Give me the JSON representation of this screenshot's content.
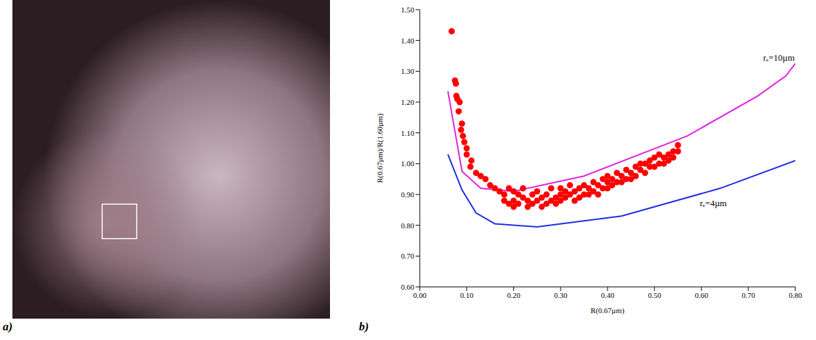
{
  "image_panel": {
    "panel_label": "a)"
  },
  "chart_data": {
    "type": "scatter",
    "panel_label": "b)",
    "x_label": "R(0.67µm)",
    "y_label": "R(0.67µm)/R(1.60µm)",
    "xlim": [
      0,
      0.8
    ],
    "xticks": [
      {
        "value": 0,
        "label": "0.00"
      },
      {
        "value": 0.1,
        "label": "0.10"
      },
      {
        "value": 0.2,
        "label": "0.20"
      },
      {
        "value": 0.3,
        "label": "0.30"
      },
      {
        "value": 0.4,
        "label": "0.40"
      },
      {
        "value": 0.5,
        "label": "0.50"
      },
      {
        "value": 0.6,
        "label": "0.60"
      },
      {
        "value": 0.7,
        "label": "0.70"
      },
      {
        "value": 0.8,
        "label": "0.80"
      }
    ],
    "ylim": [
      0.6,
      1.5
    ],
    "yticks": [
      {
        "value": 0.6,
        "label": "0.60"
      },
      {
        "value": 0.7,
        "label": "0.70"
      },
      {
        "value": 0.8,
        "label": "0.80"
      },
      {
        "value": 0.9,
        "label": "0.90"
      },
      {
        "value": 1.0,
        "label": "1.00"
      },
      {
        "value": 1.1,
        "label": "1.10"
      },
      {
        "value": 1.2,
        "label": "1.20"
      },
      {
        "value": 1.3,
        "label": "1.30"
      },
      {
        "value": 1.4,
        "label": "1.40"
      },
      {
        "value": 1.5,
        "label": "1.50"
      }
    ],
    "grid": false,
    "series": [
      {
        "name": "rₑ=10µm",
        "type": "line",
        "color": "#e020e0",
        "x": [
          0.06,
          0.09,
          0.13,
          0.2,
          0.35,
          0.57,
          0.72,
          0.78,
          0.8
        ],
        "values": [
          1.235,
          0.975,
          0.92,
          0.91,
          0.96,
          1.09,
          1.22,
          1.285,
          1.325
        ]
      },
      {
        "name": "rₑ=4µm",
        "type": "line",
        "color": "#1a2ee0",
        "x": [
          0.06,
          0.09,
          0.12,
          0.16,
          0.25,
          0.43,
          0.64,
          0.8
        ],
        "values": [
          1.03,
          0.915,
          0.84,
          0.805,
          0.795,
          0.83,
          0.92,
          1.01
        ]
      },
      {
        "type": "scatter",
        "color": "#ff0000",
        "marker": "circle",
        "x": [
          0.068,
          0.075,
          0.077,
          0.078,
          0.08,
          0.085,
          0.083,
          0.09,
          0.088,
          0.092,
          0.095,
          0.1,
          0.1,
          0.11,
          0.108,
          0.12,
          0.13,
          0.14,
          0.15,
          0.16,
          0.17,
          0.18,
          0.18,
          0.19,
          0.19,
          0.2,
          0.2,
          0.2,
          0.21,
          0.21,
          0.22,
          0.22,
          0.23,
          0.23,
          0.24,
          0.24,
          0.25,
          0.25,
          0.26,
          0.26,
          0.27,
          0.27,
          0.28,
          0.28,
          0.29,
          0.29,
          0.3,
          0.3,
          0.3,
          0.31,
          0.31,
          0.32,
          0.32,
          0.33,
          0.33,
          0.34,
          0.34,
          0.35,
          0.35,
          0.36,
          0.36,
          0.37,
          0.37,
          0.38,
          0.38,
          0.39,
          0.39,
          0.4,
          0.4,
          0.4,
          0.41,
          0.41,
          0.42,
          0.42,
          0.43,
          0.43,
          0.44,
          0.44,
          0.45,
          0.45,
          0.46,
          0.46,
          0.47,
          0.47,
          0.48,
          0.48,
          0.49,
          0.49,
          0.5,
          0.5,
          0.51,
          0.51,
          0.52,
          0.52,
          0.53,
          0.53,
          0.54,
          0.54,
          0.55,
          0.55
        ],
        "values": [
          1.43,
          1.27,
          1.26,
          1.22,
          1.21,
          1.2,
          1.17,
          1.13,
          1.11,
          1.09,
          1.07,
          1.05,
          1.03,
          1.01,
          0.99,
          0.97,
          0.96,
          0.95,
          0.93,
          0.92,
          0.91,
          0.9,
          0.88,
          0.92,
          0.87,
          0.91,
          0.88,
          0.86,
          0.9,
          0.87,
          0.89,
          0.92,
          0.88,
          0.86,
          0.9,
          0.87,
          0.88,
          0.91,
          0.89,
          0.86,
          0.9,
          0.87,
          0.88,
          0.92,
          0.89,
          0.87,
          0.9,
          0.88,
          0.92,
          0.89,
          0.91,
          0.9,
          0.93,
          0.91,
          0.88,
          0.92,
          0.89,
          0.93,
          0.9,
          0.92,
          0.9,
          0.94,
          0.91,
          0.93,
          0.9,
          0.95,
          0.92,
          0.94,
          0.96,
          0.92,
          0.95,
          0.93,
          0.97,
          0.94,
          0.96,
          0.94,
          0.98,
          0.95,
          0.97,
          0.95,
          0.99,
          0.96,
          0.98,
          1.0,
          1.0,
          0.97,
          0.99,
          1.01,
          1.02,
          0.99,
          1.0,
          1.03,
          1.02,
          1.0,
          1.03,
          1.01,
          1.04,
          1.02,
          1.06,
          1.04
        ]
      }
    ]
  }
}
